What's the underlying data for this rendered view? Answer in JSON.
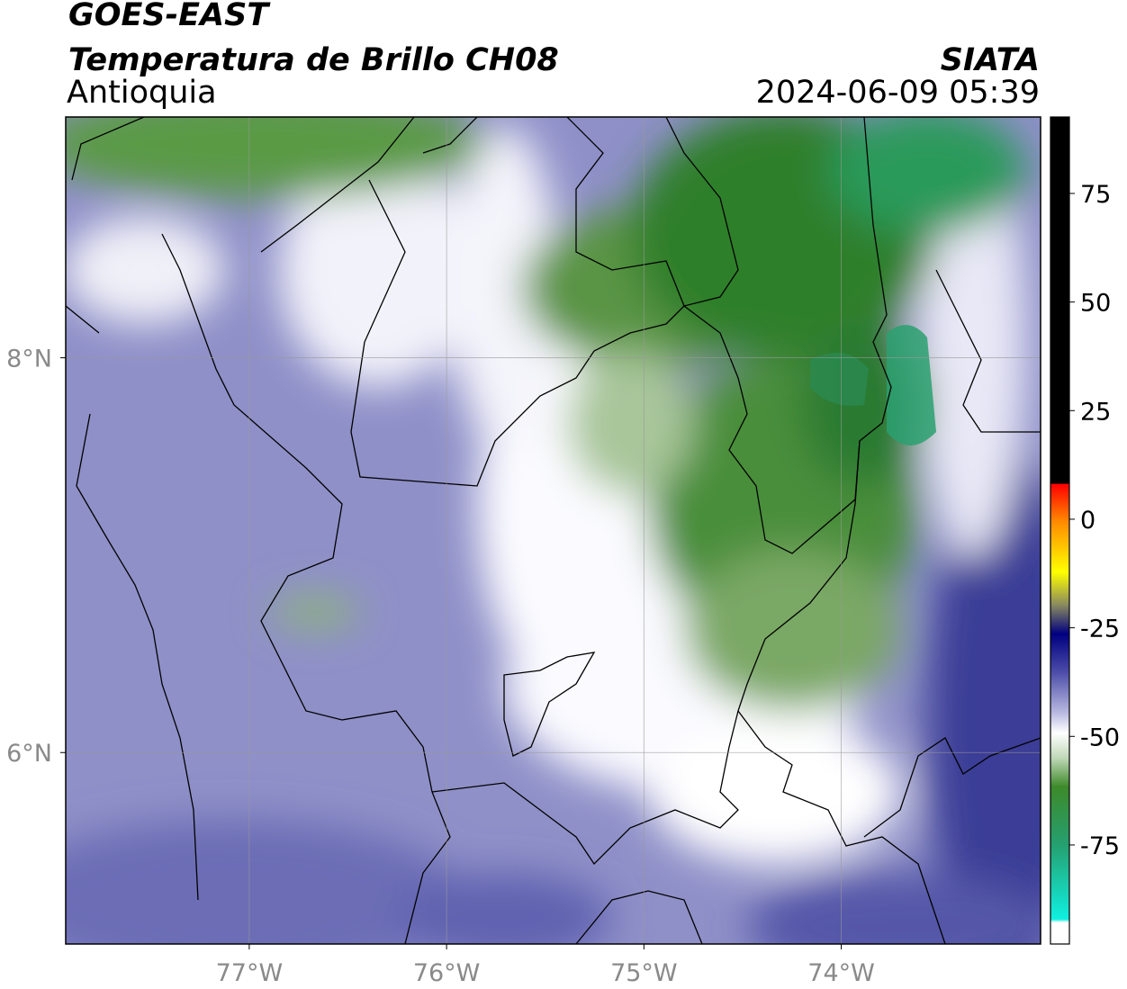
{
  "header": {
    "title": "GOES-EAST",
    "subtitle": "Temperatura de Brillo CH08",
    "region": "Antioquia",
    "source": "SIATA",
    "timestamp": "2024-06-09 05:39"
  },
  "map": {
    "xlim": [
      -77.93,
      -72.99
    ],
    "ylim": [
      5.03,
      9.22
    ],
    "xticks": [
      {
        "value": -77,
        "label": "77°W"
      },
      {
        "value": -76,
        "label": "76°W"
      },
      {
        "value": -75,
        "label": "75°W"
      },
      {
        "value": -74,
        "label": "74°W"
      }
    ],
    "yticks": [
      {
        "value": 6,
        "label": "6°N"
      },
      {
        "value": 8,
        "label": "8°N"
      }
    ],
    "grid": true
  },
  "colorbar": {
    "lim": [
      -97.8,
      92.6
    ],
    "ticks": [
      -75,
      -50,
      -25,
      0,
      25,
      50,
      75
    ]
  }
}
